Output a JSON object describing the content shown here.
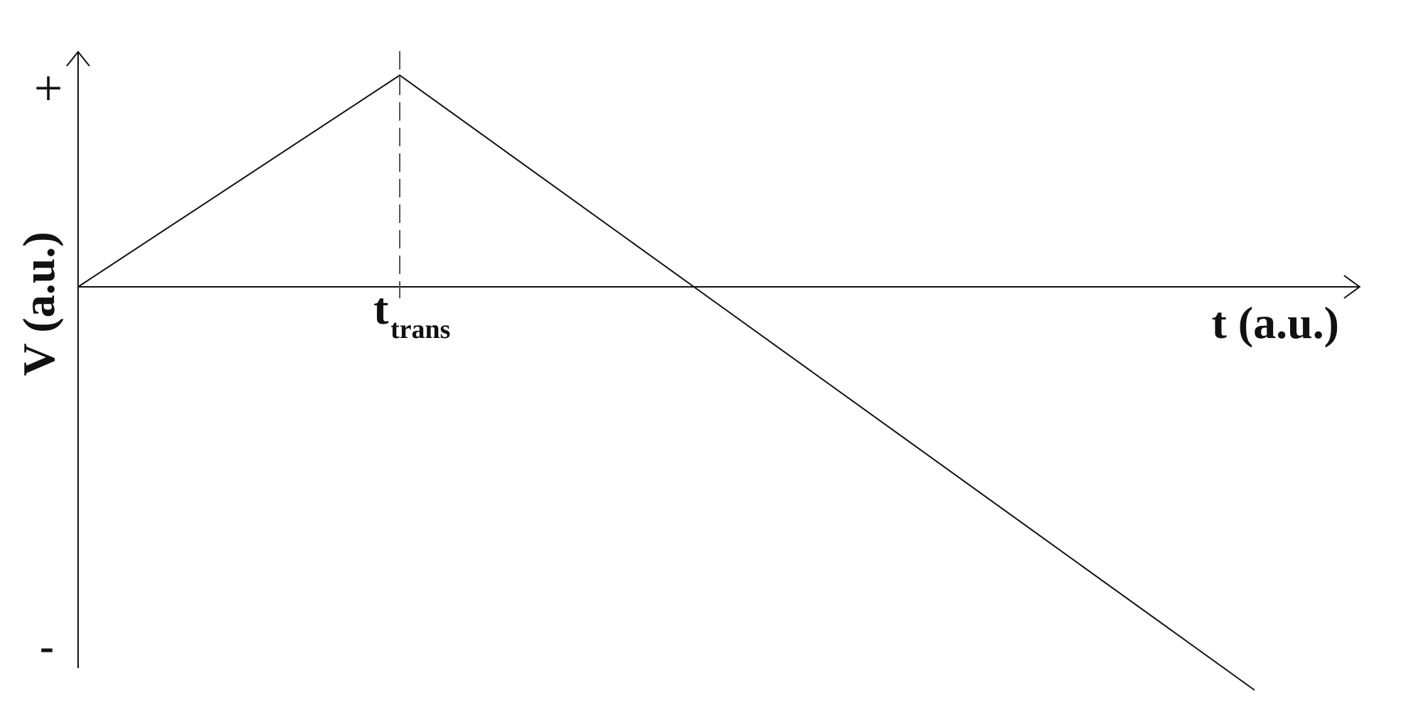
{
  "y_axis": {
    "label": "V (a.u.)",
    "top_label": "+",
    "bottom_label": "-"
  },
  "x_axis": {
    "label": "t (a.u.)"
  },
  "marker": {
    "symbol": "t",
    "subscript": "trans"
  }
}
